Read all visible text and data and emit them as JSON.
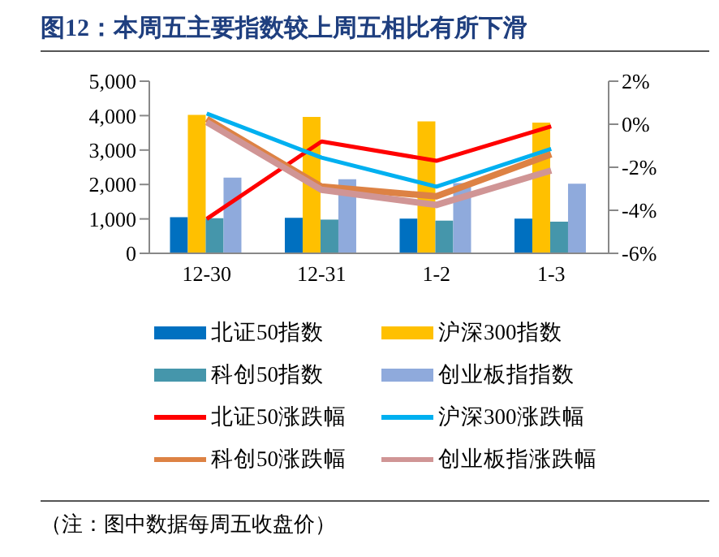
{
  "chart_data": {
    "type": "bar",
    "title": "图12：本周五主要指数较上周五相比有所下滑",
    "categories": [
      "12-30",
      "12-31",
      "1-2",
      "1-3"
    ],
    "series": [
      {
        "name": "北证50指数",
        "color": "#0070c0",
        "values": [
          1050,
          1030,
          1010,
          1010
        ]
      },
      {
        "name": "沪深300指数",
        "color": "#ffc000",
        "values": [
          4020,
          3960,
          3830,
          3800
        ]
      },
      {
        "name": "科创50指数",
        "color": "#4596ab",
        "values": [
          1020,
          980,
          950,
          920
        ]
      },
      {
        "name": "创业板指指数",
        "color": "#8faadc",
        "values": [
          2200,
          2150,
          2040,
          2020
        ]
      },
      {
        "name": "北证50涨跌幅",
        "type": "line",
        "axis": "y2",
        "color": "#ff0000",
        "values": [
          -4.4,
          -0.8,
          -1.7,
          -0.1
        ]
      },
      {
        "name": "沪深300涨跌幅",
        "type": "line",
        "axis": "y2",
        "color": "#00b0f0",
        "values": [
          0.5,
          -1.55,
          -2.9,
          -1.15
        ]
      },
      {
        "name": "科创50涨跌幅",
        "type": "line",
        "axis": "y2",
        "color": "#dd8244",
        "values": [
          0.25,
          -2.9,
          -3.35,
          -1.4
        ]
      },
      {
        "name": "创业板指涨跌幅",
        "type": "line",
        "axis": "y2",
        "color": "#d09595",
        "values": [
          0.1,
          -3.05,
          -3.75,
          -2.15
        ]
      }
    ],
    "ylim": [
      0,
      5000
    ],
    "yticks": [
      {
        "value": 0,
        "label": "0"
      },
      {
        "value": 1000,
        "label": "1,000"
      },
      {
        "value": 2000,
        "label": "2,000"
      },
      {
        "value": 3000,
        "label": "3,000"
      },
      {
        "value": 4000,
        "label": "4,000"
      },
      {
        "value": 5000,
        "label": "5,000"
      }
    ],
    "y2lim": [
      -6,
      2
    ],
    "y2ticks": [
      {
        "value": -6,
        "label": "-6%"
      },
      {
        "value": -4,
        "label": "-4%"
      },
      {
        "value": -2,
        "label": "-2%"
      },
      {
        "value": 0,
        "label": "0%"
      },
      {
        "value": 2,
        "label": "2%"
      }
    ],
    "grid": false,
    "legend": "bottom",
    "marker": "none",
    "line_style": "solid",
    "annotations": [
      "（注：图中数据每周五收盘价）"
    ]
  }
}
